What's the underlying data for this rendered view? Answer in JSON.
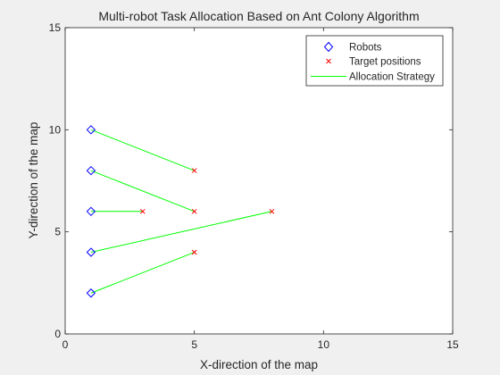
{
  "chart_data": {
    "type": "scatter",
    "title": "Multi-robot Task Allocation Based on Ant Colony Algorithm",
    "xlabel": "X-direction of the map",
    "ylabel": "Y-direction of the map",
    "xlim": [
      0,
      15
    ],
    "ylim": [
      0,
      15
    ],
    "xticks": [
      "0",
      "5",
      "10",
      "15"
    ],
    "yticks": [
      "0",
      "5",
      "10",
      "15"
    ],
    "grid": false,
    "legend_position": "top-right",
    "series": [
      {
        "name": "Robots",
        "marker": "diamond",
        "color": "#0000ff",
        "x": [
          1,
          1,
          1,
          1,
          1
        ],
        "y": [
          2,
          4,
          6,
          8,
          10
        ]
      },
      {
        "name": "Target positions",
        "marker": "x",
        "color": "#ff0000",
        "x": [
          5,
          8,
          3,
          5,
          5
        ],
        "y": [
          4,
          6,
          6,
          6,
          8
        ]
      },
      {
        "name": "Allocation Strategy",
        "marker": "line",
        "color": "#00ff00",
        "segments": [
          {
            "from": [
              1,
              2
            ],
            "to": [
              5,
              4
            ]
          },
          {
            "from": [
              1,
              4
            ],
            "to": [
              8,
              6
            ]
          },
          {
            "from": [
              1,
              6
            ],
            "to": [
              3,
              6
            ]
          },
          {
            "from": [
              1,
              8
            ],
            "to": [
              5,
              6
            ]
          },
          {
            "from": [
              1,
              10
            ],
            "to": [
              5,
              8
            ]
          }
        ]
      }
    ]
  }
}
